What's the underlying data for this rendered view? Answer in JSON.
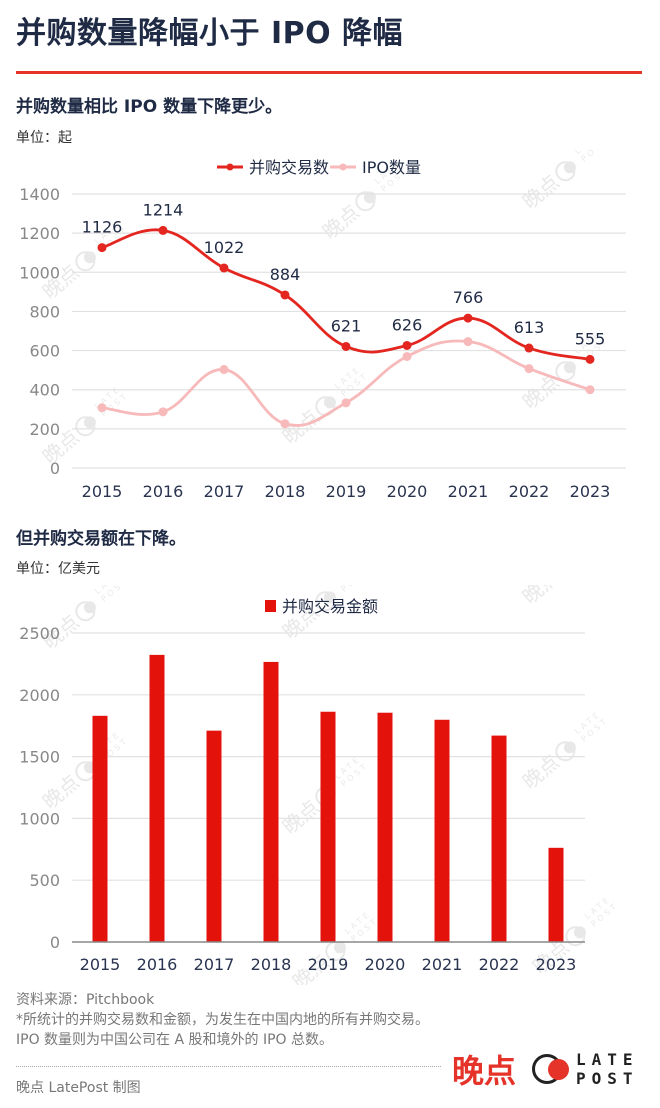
{
  "header": {
    "title": "并购数量降幅小于 IPO 降幅",
    "accent_color": "#e5332a"
  },
  "section1": {
    "subtitle": "并购数量相比 IPO 数量下降更少。",
    "unit": "单位：起"
  },
  "section2": {
    "subtitle": "但并购交易额在下降。",
    "unit": "单位：亿美元"
  },
  "footer": {
    "source": "资料来源：Pitchbook",
    "note1": "*所统计的并购交易数和金额，为发生在中国内地的所有并购交易。",
    "note2": "IPO 数量则为中国公司在 A 股和境外的 IPO 总数。",
    "credit": "晚点 LatePost 制图"
  },
  "logo": {
    "cn": "晚点",
    "en_line1": "LATE",
    "en_line2": "POST"
  },
  "watermark": {
    "cn": "晚点",
    "en": "LATE POST"
  },
  "chart_data": [
    {
      "type": "line",
      "title": "并购数量相比 IPO 数量下降更少。",
      "ylabel": "单位：起",
      "xlabel": "",
      "categories": [
        "2015",
        "2016",
        "2017",
        "2018",
        "2019",
        "2020",
        "2021",
        "2022",
        "2023"
      ],
      "series": [
        {
          "name": "并购交易数",
          "color": "#e3261f",
          "values": [
            1126,
            1214,
            1022,
            884,
            621,
            626,
            766,
            613,
            555
          ],
          "data_labels": true
        },
        {
          "name": "IPO数量",
          "color": "#f7b9b9",
          "values": [
            308,
            287,
            503,
            226,
            333,
            570,
            646,
            508,
            400
          ],
          "data_labels": false
        }
      ],
      "ylim": [
        0,
        1400
      ],
      "yticks": [
        0,
        200,
        400,
        600,
        800,
        1000,
        1200,
        1400
      ],
      "grid": true,
      "legend_position": "top"
    },
    {
      "type": "bar",
      "title": "但并购交易额在下降。",
      "ylabel": "单位：亿美元",
      "xlabel": "",
      "categories": [
        "2015",
        "2016",
        "2017",
        "2018",
        "2019",
        "2020",
        "2021",
        "2022",
        "2023"
      ],
      "series": [
        {
          "name": "并购交易金额",
          "color": "#e3120b",
          "values": [
            1830,
            2323,
            1710,
            2266,
            1863,
            1855,
            1798,
            1670,
            762
          ]
        }
      ],
      "ylim": [
        0,
        2500
      ],
      "yticks": [
        0,
        500,
        1000,
        1500,
        2000,
        2500
      ],
      "grid": true,
      "legend_position": "top"
    }
  ]
}
